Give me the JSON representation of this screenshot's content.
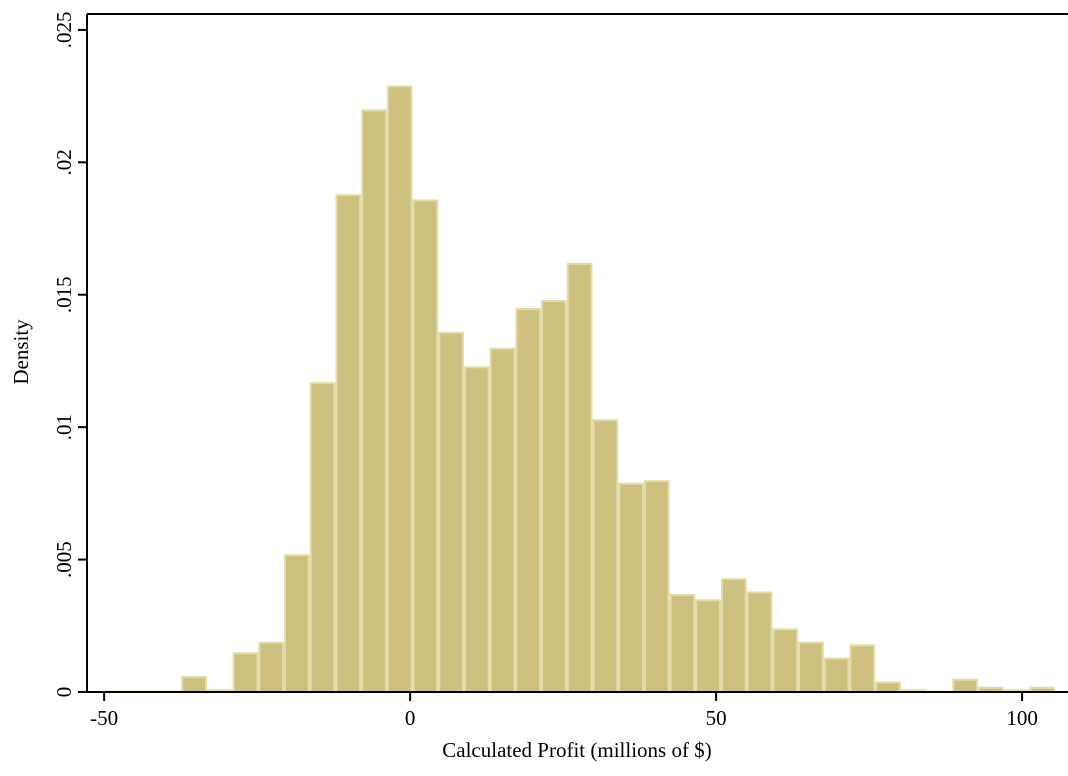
{
  "chart_data": {
    "type": "histogram",
    "x_label": "Calculated Profit (millions of $)",
    "y_label": "Density",
    "bins": [
      -50,
      -45.8,
      -41.6,
      -37.4,
      -33.2,
      -29,
      -24.8,
      -20.6,
      -16.4,
      -12.2,
      -8,
      -3.8,
      0.4,
      4.6,
      8.8,
      13,
      17.2,
      21.4,
      25.6,
      29.8,
      34,
      38.2,
      42.4,
      46.6,
      50.8,
      55,
      59.2,
      63.4,
      67.6,
      71.8,
      76,
      80.2,
      84.4,
      88.6,
      92.8,
      97,
      101.2,
      105.4
    ],
    "values": [
      5e-05,
      5e-05,
      5e-05,
      0.0006,
      0.0001,
      0.0015,
      0.0019,
      0.0052,
      0.0117,
      0.0188,
      0.022,
      0.0229,
      0.0186,
      0.0136,
      0.0123,
      0.013,
      0.0145,
      0.0148,
      0.0162,
      0.0103,
      0.0079,
      0.008,
      0.0037,
      0.0035,
      0.0043,
      0.0038,
      0.0024,
      0.0019,
      0.0013,
      0.0018,
      0.0004,
      0.0001,
      5e-05,
      0.0005,
      0.0002,
      0.0001,
      0.0002
    ],
    "color": "#cdc07f",
    "edge_color": "#e3dca8",
    "xlim": [
      -52.8,
      107.5
    ],
    "ylim": [
      0,
      0.0256
    ],
    "xticks": [
      -50,
      0,
      50,
      100
    ],
    "yticks": [
      0,
      {
        "value": 0.005,
        "label": ".005"
      },
      {
        "value": 0.01,
        "label": ".01"
      },
      {
        "value": 0.015,
        "label": ".015"
      },
      {
        "value": 0.02,
        "label": ".02"
      },
      {
        "value": 0.025,
        "label": ".025"
      }
    ]
  }
}
